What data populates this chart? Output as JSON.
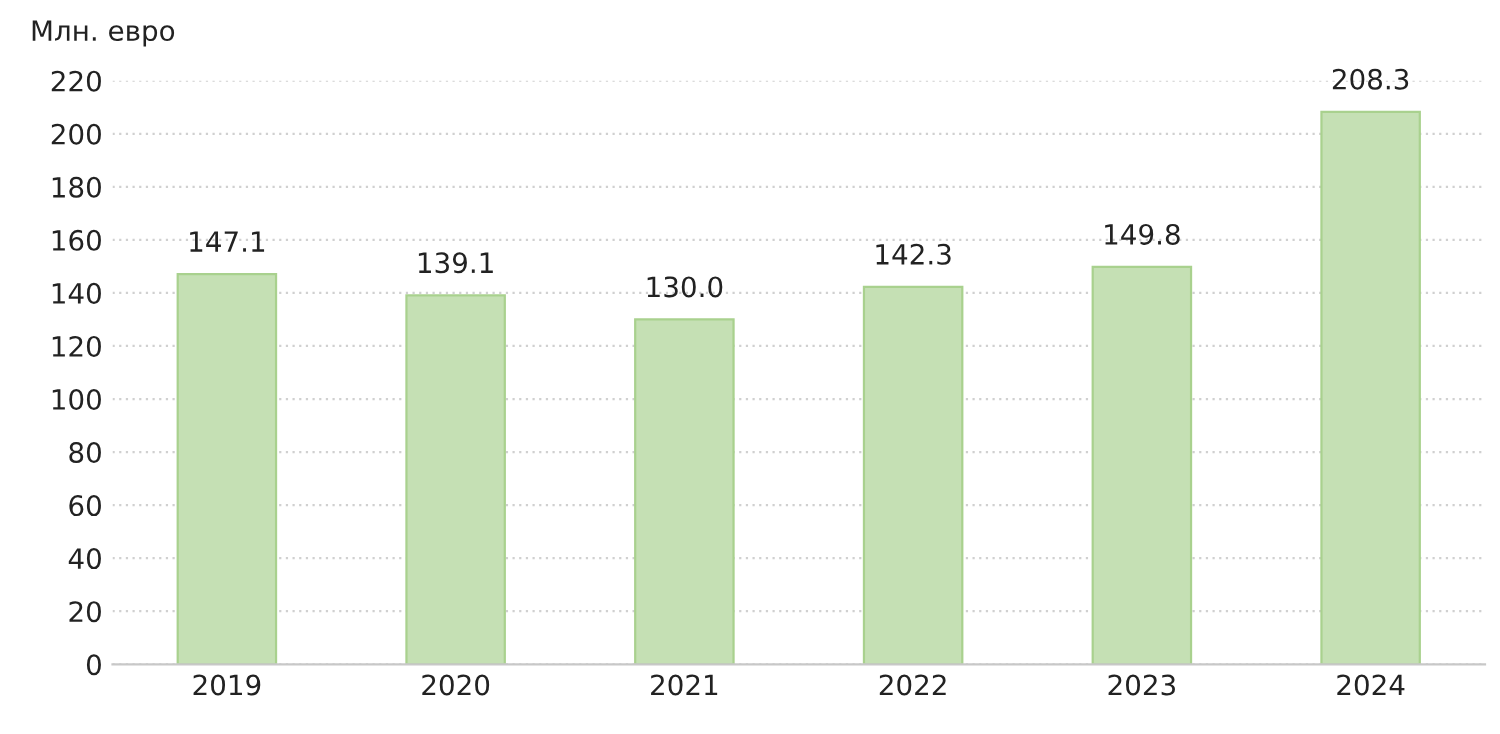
{
  "chart_data": {
    "type": "bar",
    "ylabel": "Млн. евро",
    "categories": [
      "2019",
      "2020",
      "2021",
      "2022",
      "2023",
      "2024"
    ],
    "values": [
      147.1,
      139.1,
      130.0,
      142.3,
      149.8,
      208.3
    ],
    "value_labels": [
      "147.1",
      "139.1",
      "130.0",
      "142.3",
      "149.8",
      "208.3"
    ],
    "color": "#c5e0b4",
    "ylim": [
      0,
      220
    ],
    "yticks": [
      0,
      20,
      40,
      60,
      80,
      100,
      120,
      140,
      160,
      180,
      200,
      220
    ],
    "grid": "y"
  }
}
